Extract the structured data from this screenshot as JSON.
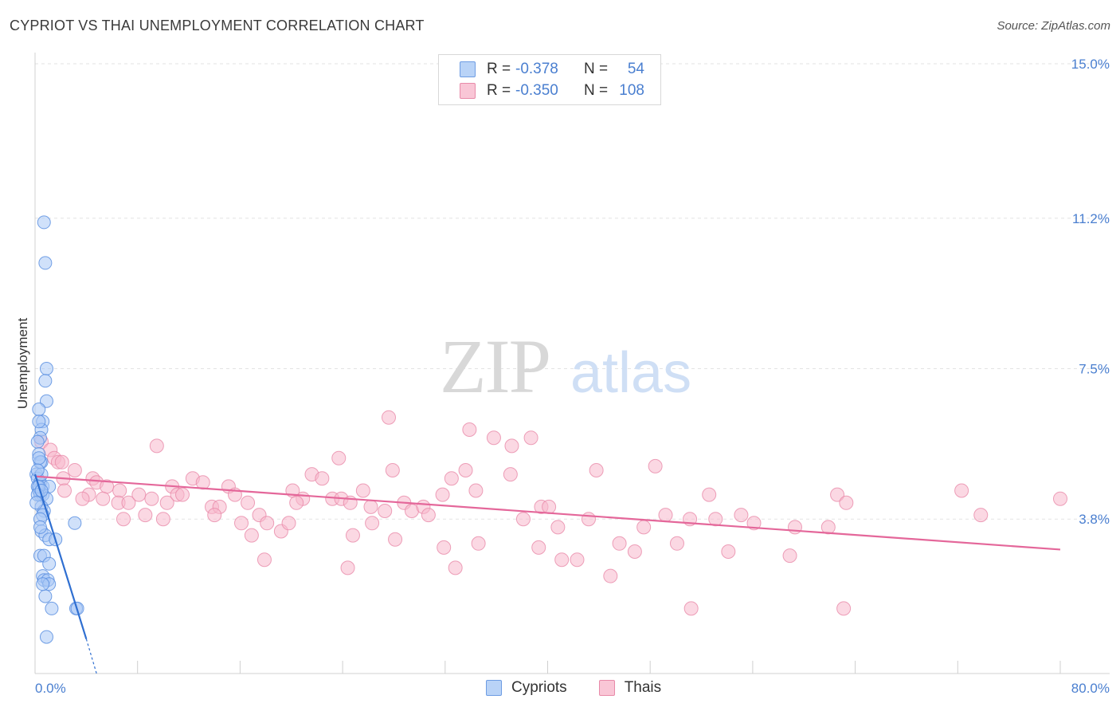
{
  "title": "CYPRIOT VS THAI UNEMPLOYMENT CORRELATION CHART",
  "source": "Source: ZipAtlas.com",
  "watermark": {
    "zip": "ZIP",
    "atlas": "atlas"
  },
  "legend": {
    "rows": [
      {
        "r_label": "R =",
        "r_value": "-0.378",
        "n_label": "N =",
        "n_value": "54"
      },
      {
        "r_label": "R =",
        "r_value": "-0.350",
        "n_label": "N =",
        "n_value": "108"
      }
    ],
    "bottom": [
      "Cypriots",
      "Thais"
    ]
  },
  "colors": {
    "cypriot_fill": "#a9c8f5",
    "cypriot_stroke": "#5b8fe0",
    "cypriot_line": "#2f6fd1",
    "thai_fill": "#f7b8cc",
    "thai_stroke": "#e88aa9",
    "thai_line": "#e4679a",
    "tick_text": "#4a7fd0",
    "grid": "#e3e3e3"
  },
  "chart_data": {
    "type": "scatter",
    "title": "CYPRIOT VS THAI UNEMPLOYMENT CORRELATION CHART",
    "xlabel": "",
    "ylabel": "Unemployment",
    "xlim": [
      0,
      80
    ],
    "ylim": [
      0,
      15
    ],
    "y_ticks": [
      "15.0%",
      "11.2%",
      "7.5%",
      "3.8%"
    ],
    "y_tick_values": [
      15.0,
      11.2,
      7.5,
      3.8
    ],
    "x_tick_labels": [
      "0.0%",
      "80.0%"
    ],
    "grid": true,
    "legend_position": "top-center",
    "series": [
      {
        "name": "Cypriots",
        "r": -0.378,
        "n": 54,
        "trend": {
          "x0": 0.0,
          "y0": 4.9,
          "x1": 4.0,
          "y1": 0.85,
          "dash_to_x": 4.8,
          "dash_to_y": 0.0
        },
        "points": [
          [
            0.7,
            11.1
          ],
          [
            0.8,
            10.1
          ],
          [
            0.9,
            7.5
          ],
          [
            0.8,
            7.2
          ],
          [
            0.9,
            6.7
          ],
          [
            0.3,
            6.5
          ],
          [
            0.6,
            6.2
          ],
          [
            0.5,
            6.0
          ],
          [
            0.4,
            5.8
          ],
          [
            0.2,
            5.7
          ],
          [
            0.3,
            5.4
          ],
          [
            0.5,
            5.2
          ],
          [
            0.4,
            5.2
          ],
          [
            0.1,
            4.9
          ],
          [
            0.2,
            4.8
          ],
          [
            0.4,
            4.7
          ],
          [
            0.6,
            4.6
          ],
          [
            1.1,
            4.6
          ],
          [
            0.3,
            4.5
          ],
          [
            0.4,
            4.4
          ],
          [
            0.6,
            4.4
          ],
          [
            0.9,
            4.3
          ],
          [
            0.5,
            4.1
          ],
          [
            0.7,
            4.0
          ],
          [
            0.6,
            3.9
          ],
          [
            0.4,
            3.8
          ],
          [
            3.1,
            3.7
          ],
          [
            0.5,
            3.5
          ],
          [
            0.8,
            3.4
          ],
          [
            1.1,
            3.3
          ],
          [
            1.6,
            3.3
          ],
          [
            0.4,
            2.9
          ],
          [
            0.7,
            2.9
          ],
          [
            1.1,
            2.7
          ],
          [
            0.6,
            2.4
          ],
          [
            0.7,
            2.3
          ],
          [
            1.0,
            2.3
          ],
          [
            1.1,
            2.2
          ],
          [
            0.8,
            1.9
          ],
          [
            1.3,
            1.6
          ],
          [
            3.2,
            1.6
          ],
          [
            3.3,
            1.6
          ],
          [
            0.9,
            0.9
          ],
          [
            0.2,
            4.6
          ],
          [
            0.3,
            4.6
          ],
          [
            0.2,
            4.4
          ],
          [
            0.3,
            5.3
          ],
          [
            0.5,
            4.9
          ],
          [
            0.4,
            3.6
          ],
          [
            0.6,
            2.2
          ],
          [
            0.2,
            5.0
          ],
          [
            0.1,
            4.2
          ],
          [
            0.5,
            4.5
          ],
          [
            0.3,
            6.2
          ]
        ]
      },
      {
        "name": "Thais",
        "r": -0.35,
        "n": 108,
        "trend": {
          "x0": 0.0,
          "y0": 4.85,
          "x1": 80.0,
          "y1": 3.05
        },
        "points": [
          [
            0.5,
            5.7
          ],
          [
            1.2,
            5.5
          ],
          [
            1.5,
            5.3
          ],
          [
            1.8,
            5.2
          ],
          [
            2.1,
            5.2
          ],
          [
            3.1,
            5.0
          ],
          [
            2.2,
            4.8
          ],
          [
            4.5,
            4.8
          ],
          [
            4.8,
            4.7
          ],
          [
            5.6,
            4.6
          ],
          [
            6.6,
            4.5
          ],
          [
            4.2,
            4.4
          ],
          [
            2.3,
            4.5
          ],
          [
            3.7,
            4.3
          ],
          [
            5.3,
            4.3
          ],
          [
            6.5,
            4.2
          ],
          [
            7.3,
            4.2
          ],
          [
            8.1,
            4.4
          ],
          [
            9.1,
            4.3
          ],
          [
            10.3,
            4.2
          ],
          [
            10.0,
            3.8
          ],
          [
            8.6,
            3.9
          ],
          [
            6.9,
            3.8
          ],
          [
            10.7,
            4.6
          ],
          [
            9.5,
            5.6
          ],
          [
            11.1,
            4.4
          ],
          [
            11.5,
            4.4
          ],
          [
            12.3,
            4.8
          ],
          [
            13.1,
            4.7
          ],
          [
            13.8,
            4.1
          ],
          [
            14.4,
            4.1
          ],
          [
            14.0,
            3.9
          ],
          [
            15.1,
            4.6
          ],
          [
            15.6,
            4.4
          ],
          [
            16.6,
            4.2
          ],
          [
            16.1,
            3.7
          ],
          [
            17.5,
            3.9
          ],
          [
            18.1,
            3.7
          ],
          [
            16.9,
            3.4
          ],
          [
            17.9,
            2.8
          ],
          [
            19.2,
            3.5
          ],
          [
            20.1,
            4.5
          ],
          [
            20.9,
            4.3
          ],
          [
            21.6,
            4.9
          ],
          [
            22.4,
            4.8
          ],
          [
            23.2,
            4.3
          ],
          [
            23.9,
            4.3
          ],
          [
            24.6,
            4.2
          ],
          [
            25.6,
            4.5
          ],
          [
            26.2,
            4.1
          ],
          [
            27.3,
            4.0
          ],
          [
            27.9,
            5.0
          ],
          [
            28.8,
            4.2
          ],
          [
            29.4,
            4.0
          ],
          [
            28.1,
            3.3
          ],
          [
            23.7,
            5.3
          ],
          [
            26.3,
            3.7
          ],
          [
            24.4,
            2.6
          ],
          [
            30.3,
            4.1
          ],
          [
            30.7,
            3.9
          ],
          [
            31.8,
            4.4
          ],
          [
            32.5,
            4.8
          ],
          [
            33.6,
            5.0
          ],
          [
            34.4,
            4.5
          ],
          [
            35.8,
            5.8
          ],
          [
            37.2,
            5.6
          ],
          [
            37.1,
            4.9
          ],
          [
            38.7,
            5.8
          ],
          [
            38.1,
            3.8
          ],
          [
            39.5,
            4.1
          ],
          [
            40.1,
            4.1
          ],
          [
            40.8,
            3.6
          ],
          [
            41.1,
            2.8
          ],
          [
            42.3,
            2.8
          ],
          [
            43.2,
            3.8
          ],
          [
            43.8,
            5.0
          ],
          [
            44.9,
            2.4
          ],
          [
            45.6,
            3.2
          ],
          [
            46.8,
            3.0
          ],
          [
            47.5,
            3.6
          ],
          [
            48.4,
            5.1
          ],
          [
            49.2,
            3.9
          ],
          [
            50.1,
            3.2
          ],
          [
            51.1,
            3.8
          ],
          [
            52.6,
            4.4
          ],
          [
            53.1,
            3.8
          ],
          [
            54.1,
            3.0
          ],
          [
            55.1,
            3.9
          ],
          [
            56.1,
            3.7
          ],
          [
            34.6,
            3.2
          ],
          [
            31.9,
            3.1
          ],
          [
            32.8,
            2.6
          ],
          [
            27.6,
            6.3
          ],
          [
            19.8,
            3.7
          ],
          [
            20.4,
            4.2
          ],
          [
            24.8,
            3.4
          ],
          [
            33.9,
            6.0
          ],
          [
            39.3,
            3.1
          ],
          [
            51.2,
            1.6
          ],
          [
            63.1,
            1.6
          ],
          [
            62.6,
            4.4
          ],
          [
            63.3,
            4.2
          ],
          [
            59.3,
            3.6
          ],
          [
            61.9,
            3.6
          ],
          [
            58.9,
            2.9
          ],
          [
            72.3,
            4.5
          ],
          [
            73.8,
            3.9
          ],
          [
            80.0,
            4.3
          ]
        ]
      }
    ]
  }
}
